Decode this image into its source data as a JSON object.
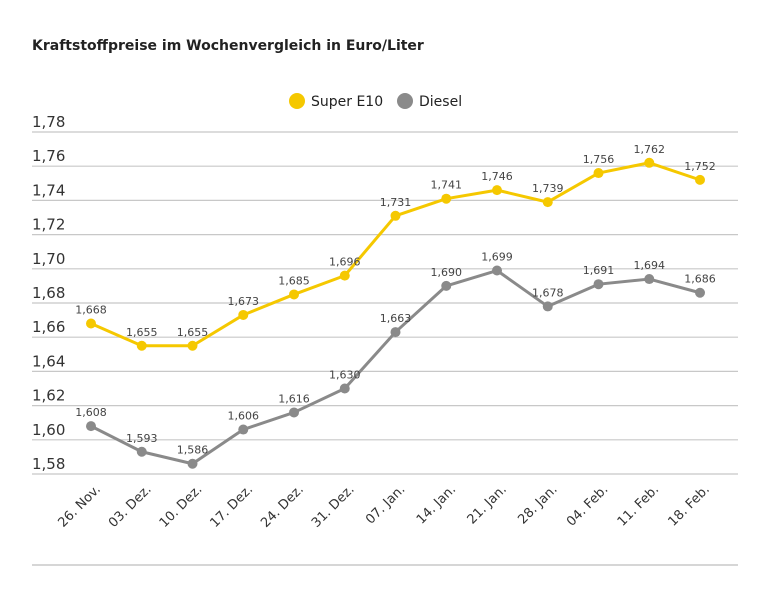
{
  "chart_data": {
    "type": "line",
    "title": "Kraftstoffpreise im Wochenvergleich in Euro/Liter",
    "categories": [
      "26. Nov.",
      "03. Dez.",
      "10. Dez.",
      "17. Dez.",
      "24. Dez.",
      "31. Dez.",
      "07. Jan.",
      "14. Jan.",
      "21. Jan.",
      "28. Jan.",
      "04. Feb.",
      "11. Feb.",
      "18. Feb."
    ],
    "series": [
      {
        "name": "Super E10",
        "color": "#f5c800",
        "values": [
          1.668,
          1.655,
          1.655,
          1.673,
          1.685,
          1.696,
          1.731,
          1.741,
          1.746,
          1.739,
          1.756,
          1.762,
          1.752
        ],
        "labels": [
          "1,668",
          "1,655",
          "1,655",
          "1,673",
          "1,685",
          "1,696",
          "1,731",
          "1,741",
          "1,746",
          "1,739",
          "1,756",
          "1,762",
          "1,752"
        ]
      },
      {
        "name": "Diesel",
        "color": "#8a8a8a",
        "values": [
          1.608,
          1.593,
          1.586,
          1.606,
          1.616,
          1.63,
          1.663,
          1.69,
          1.699,
          1.678,
          1.691,
          1.694,
          1.686
        ],
        "labels": [
          "1,608",
          "1,593",
          "1,586",
          "1,606",
          "1,616",
          "1,630",
          "1,663",
          "1,690",
          "1,699",
          "1,678",
          "1,691",
          "1,694",
          "1,686"
        ]
      }
    ],
    "ylim": [
      1.58,
      1.78
    ],
    "yticks": [
      "1,58",
      "1,60",
      "1,62",
      "1,64",
      "1,66",
      "1,68",
      "1,70",
      "1,72",
      "1,74",
      "1,76",
      "1,78"
    ],
    "grid": true,
    "legend": "top-center"
  }
}
